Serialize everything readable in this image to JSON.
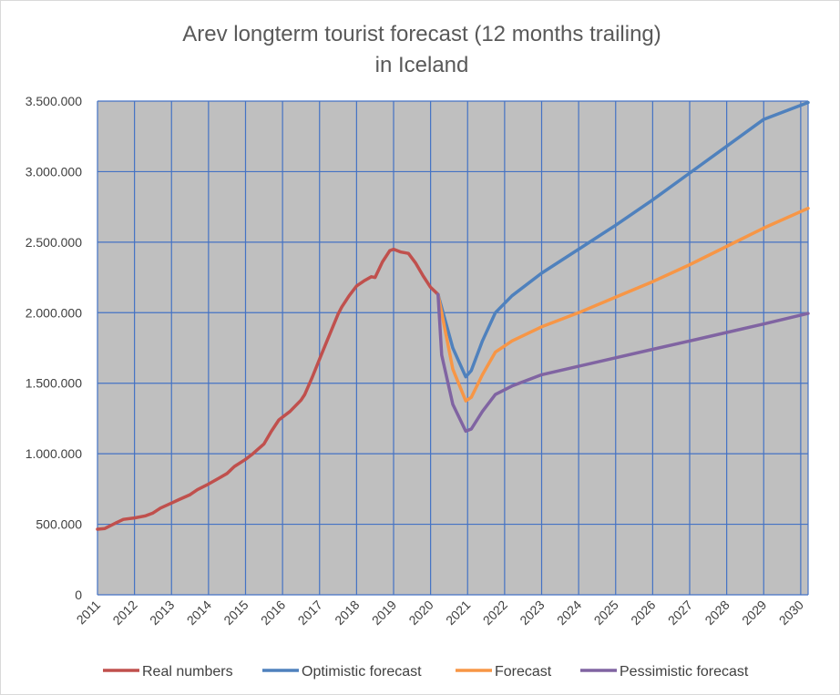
{
  "chart_data": {
    "type": "line",
    "title": [
      "Arev longterm tourist forecast (12 months trailing)",
      "in Iceland"
    ],
    "xlabel": "",
    "ylabel": "",
    "xlim": [
      2011,
      2030.2
    ],
    "ylim": [
      0,
      3500000
    ],
    "x_ticks": [
      "2011",
      "2012",
      "2013",
      "2014",
      "2015",
      "2016",
      "2017",
      "2018",
      "2019",
      "2020",
      "2021",
      "2022",
      "2023",
      "2024",
      "2025",
      "2026",
      "2027",
      "2028",
      "2029",
      "2030"
    ],
    "y_ticks": [
      {
        "value": 0,
        "label": "0"
      },
      {
        "value": 500000,
        "label": "500.000"
      },
      {
        "value": 1000000,
        "label": "1.000.000"
      },
      {
        "value": 1500000,
        "label": "1.500.000"
      },
      {
        "value": 2000000,
        "label": "2.000.000"
      },
      {
        "value": 2500000,
        "label": "2.500.000"
      },
      {
        "value": 3000000,
        "label": "3.000.000"
      },
      {
        "value": 3500000,
        "label": "3.500.000"
      }
    ],
    "grid": true,
    "legend_position": "bottom",
    "plot_background": "#bfbfbf",
    "grid_color": "#4472c4",
    "series": [
      {
        "name": "Real numbers",
        "color": "#c0504d",
        "points": [
          [
            2011.0,
            465000
          ],
          [
            2011.2,
            470000
          ],
          [
            2011.5,
            510000
          ],
          [
            2011.7,
            535000
          ],
          [
            2012.0,
            545000
          ],
          [
            2012.3,
            560000
          ],
          [
            2012.5,
            580000
          ],
          [
            2012.7,
            615000
          ],
          [
            2013.0,
            650000
          ],
          [
            2013.2,
            675000
          ],
          [
            2013.5,
            710000
          ],
          [
            2013.7,
            745000
          ],
          [
            2014.0,
            785000
          ],
          [
            2014.3,
            830000
          ],
          [
            2014.5,
            860000
          ],
          [
            2014.7,
            910000
          ],
          [
            2015.0,
            960000
          ],
          [
            2015.2,
            1000000
          ],
          [
            2015.5,
            1070000
          ],
          [
            2015.7,
            1160000
          ],
          [
            2015.9,
            1240000
          ],
          [
            2016.2,
            1300000
          ],
          [
            2016.5,
            1380000
          ],
          [
            2016.6,
            1420000
          ],
          [
            2016.8,
            1540000
          ],
          [
            2017.0,
            1670000
          ],
          [
            2017.2,
            1800000
          ],
          [
            2017.5,
            1990000
          ],
          [
            2017.6,
            2040000
          ],
          [
            2017.8,
            2120000
          ],
          [
            2018.0,
            2190000
          ],
          [
            2018.2,
            2225000
          ],
          [
            2018.4,
            2255000
          ],
          [
            2018.5,
            2250000
          ],
          [
            2018.7,
            2360000
          ],
          [
            2018.9,
            2440000
          ],
          [
            2019.0,
            2450000
          ],
          [
            2019.2,
            2430000
          ],
          [
            2019.4,
            2420000
          ],
          [
            2019.6,
            2350000
          ],
          [
            2019.8,
            2260000
          ],
          [
            2020.0,
            2180000
          ],
          [
            2020.2,
            2130000
          ]
        ]
      },
      {
        "name": "Optimistic forecast",
        "color": "#4f81bd",
        "points": [
          [
            2020.2,
            2130000
          ],
          [
            2020.6,
            1750000
          ],
          [
            2020.95,
            1545000
          ],
          [
            2021.1,
            1590000
          ],
          [
            2021.4,
            1800000
          ],
          [
            2021.75,
            2000000
          ],
          [
            2022.2,
            2120000
          ],
          [
            2023.0,
            2280000
          ],
          [
            2024.0,
            2450000
          ],
          [
            2025.0,
            2620000
          ],
          [
            2026.0,
            2800000
          ],
          [
            2027.0,
            2990000
          ],
          [
            2028.0,
            3180000
          ],
          [
            2029.0,
            3370000
          ],
          [
            2030.2,
            3490000
          ]
        ]
      },
      {
        "name": "Forecast",
        "color": "#f79646",
        "points": [
          [
            2020.2,
            2130000
          ],
          [
            2020.6,
            1600000
          ],
          [
            2020.95,
            1375000
          ],
          [
            2021.1,
            1400000
          ],
          [
            2021.4,
            1560000
          ],
          [
            2021.75,
            1720000
          ],
          [
            2022.2,
            1800000
          ],
          [
            2023.0,
            1900000
          ],
          [
            2024.0,
            2000000
          ],
          [
            2025.0,
            2110000
          ],
          [
            2026.0,
            2220000
          ],
          [
            2027.0,
            2340000
          ],
          [
            2028.0,
            2470000
          ],
          [
            2029.0,
            2600000
          ],
          [
            2030.2,
            2740000
          ]
        ]
      },
      {
        "name": "Pessimistic forecast",
        "color": "#8064a2",
        "points": [
          [
            2020.2,
            2130000
          ],
          [
            2020.3,
            1700000
          ],
          [
            2020.6,
            1350000
          ],
          [
            2020.95,
            1160000
          ],
          [
            2021.1,
            1175000
          ],
          [
            2021.4,
            1300000
          ],
          [
            2021.75,
            1420000
          ],
          [
            2022.2,
            1480000
          ],
          [
            2023.0,
            1560000
          ],
          [
            2024.0,
            1620000
          ],
          [
            2025.0,
            1680000
          ],
          [
            2026.0,
            1740000
          ],
          [
            2027.0,
            1800000
          ],
          [
            2028.0,
            1860000
          ],
          [
            2029.0,
            1920000
          ],
          [
            2030.2,
            1995000
          ]
        ]
      }
    ]
  }
}
